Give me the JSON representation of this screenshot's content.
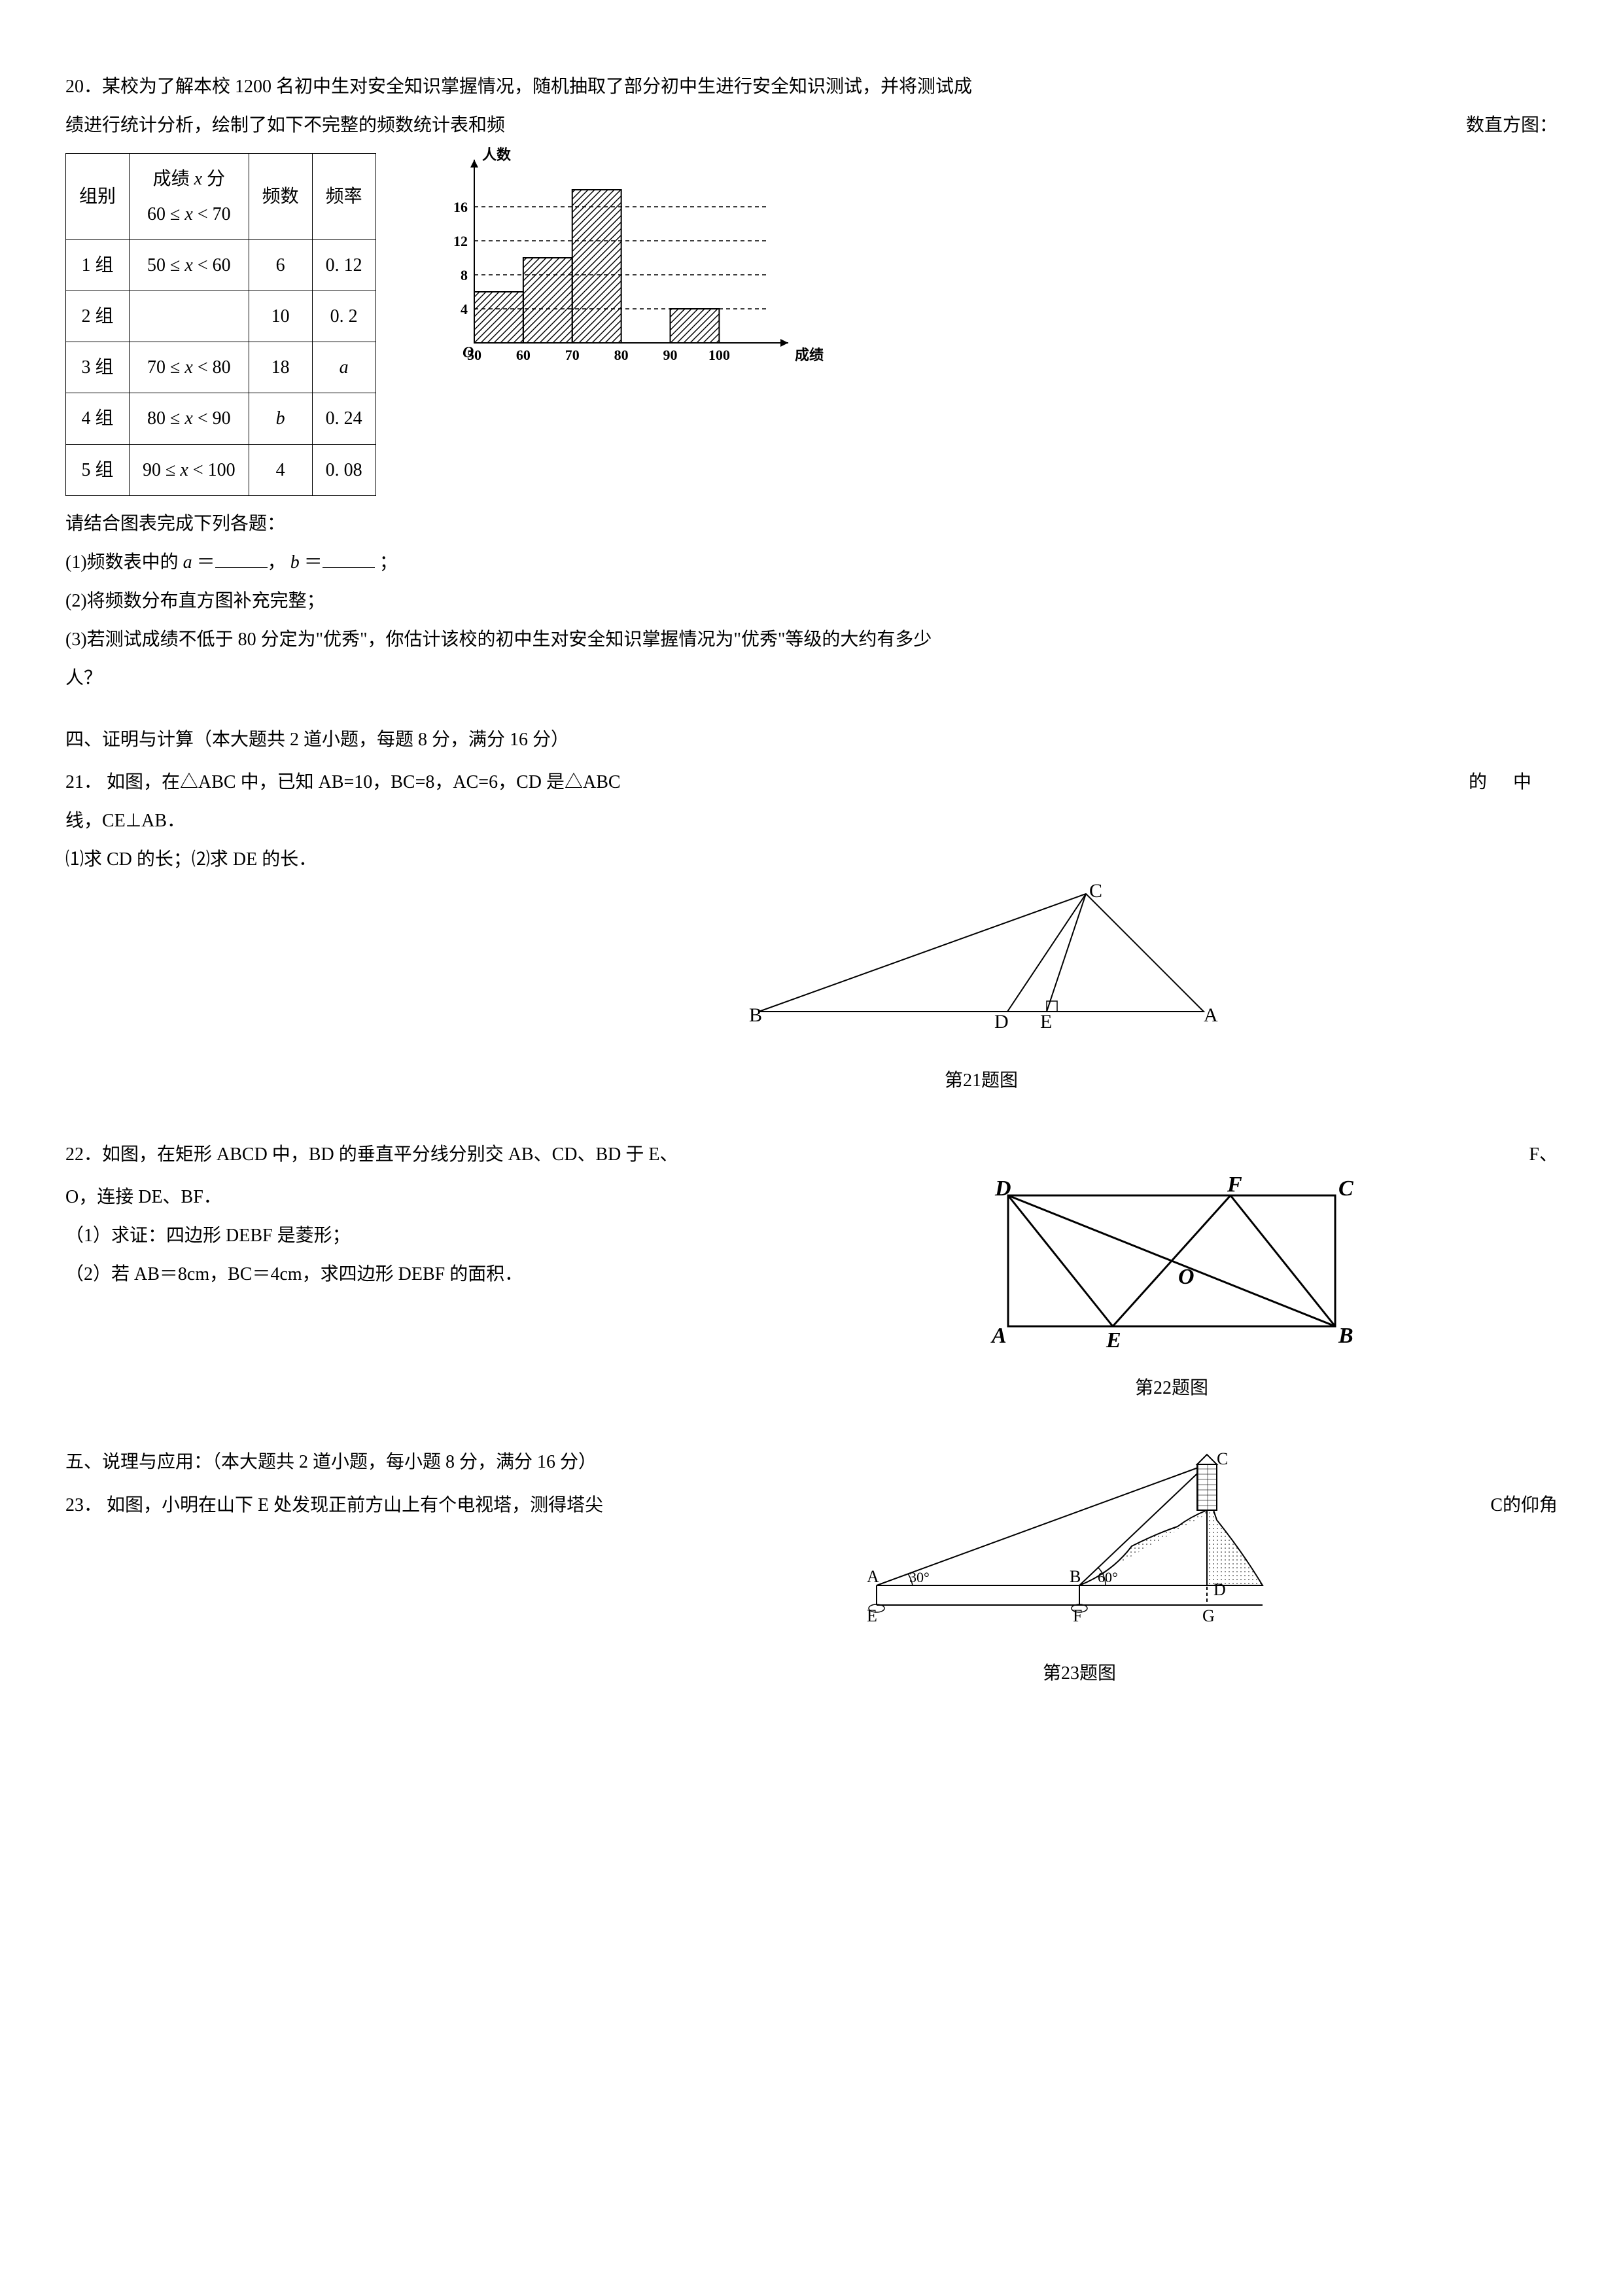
{
  "q20": {
    "intro_line1": "20．某校为了解本校 1200 名初中生对安全知识掌握情况，随机抽取了部分初中生进行安全知识测试，并将测试成",
    "intro_line2": "绩进行统计分析，绘制了如下不完整的频数统计表和频",
    "intro_right": "数直方图：",
    "table": {
      "headers": {
        "group": "组别",
        "score_top": "成绩",
        "score_suffix": " 分",
        "freq": "频数",
        "rate": "频率"
      },
      "header_range": "60 ≤ x < 70",
      "rows": [
        {
          "g": "1 组",
          "r": "50 ≤ x < 60",
          "f": "6",
          "p": "0. 12"
        },
        {
          "g": "2 组",
          "r": "",
          "f": "10",
          "p": "0. 2"
        },
        {
          "g": "3 组",
          "r": "70 ≤ x < 80",
          "f": "18",
          "p": "a"
        },
        {
          "g": "4 组",
          "r": "80 ≤ x < 90",
          "f": "b",
          "p": "0. 24"
        },
        {
          "g": "5 组",
          "r": "90 ≤ x < 100",
          "f": "4",
          "p": "0. 08"
        }
      ]
    },
    "chart": {
      "ylabel": "人数",
      "xlabel": "成绩",
      "yticks": [
        4,
        8,
        12,
        16
      ],
      "xticks": [
        50,
        60,
        70,
        80,
        90,
        100
      ],
      "bars": [
        {
          "x0": 50,
          "x1": 60,
          "y": 6
        },
        {
          "x0": 60,
          "x1": 70,
          "y": 10
        },
        {
          "x0": 70,
          "x1": 80,
          "y": 18
        },
        {
          "x0": 90,
          "x1": 100,
          "y": 4
        }
      ],
      "ymax": 20,
      "origin_label": "O"
    },
    "sub_intro": "请结合图表完成下列各题：",
    "p1a": "(1)频数表中的 ",
    "p1_a": "a",
    "p1_eq": " ＝",
    "p1_sep": "，",
    "p1_b": "b",
    "p1_end": " ；",
    "p2": "(2)将频数分布直方图补充完整；",
    "p3a": "(3)若测试成绩不低于 80 分定为\"优秀\"，你估计该校的初中生对安全知识掌握情况为\"优秀\"等级的大约有多少",
    "p3b": "人？"
  },
  "section4": "四、证明与计算（本大题共 2 道小题，每题 8 分，满分 16 分）",
  "q21": {
    "line1_left": "21． 如图，在△ABC 中，已知 AB=10，BC=8，AC=6，CD 是△ABC",
    "line1_r1": "的",
    "line1_r2": "中",
    "line2": "线，CE⊥AB．",
    "line3": "⑴求 CD 的长；⑵求 DE 的长．",
    "fig_label": "第21题图",
    "labels": {
      "A": "A",
      "B": "B",
      "C": "C",
      "D": "D",
      "E": "E"
    }
  },
  "q22": {
    "line1_left": "22．如图，在矩形 ABCD 中，BD 的垂直平分线分别交 AB、CD、BD 于 E、",
    "line1_right": "F、",
    "line2": "O，连接 DE、BF．",
    "p1": "（1）求证：四边形 DEBF 是菱形；",
    "p2": "（2）若 AB＝8cm，BC＝4cm，求四边形 DEBF 的面积．",
    "fig_label": "第22题图",
    "labels": {
      "A": "A",
      "B": "B",
      "C": "C",
      "D": "D",
      "E": "E",
      "F": "F",
      "O": "O"
    }
  },
  "section5": "五、说理与应用：（本大题共 2 道小题，每小题 8 分，满分 16 分）",
  "q23": {
    "line1_left": "23． 如图，小明在山下 E 处发现正前方山上有个电视塔，测得塔尖",
    "line1_right": "C的仰角",
    "fig_label": "第23题图",
    "labels": {
      "A": "A",
      "B": "B",
      "C": "C",
      "D": "D",
      "E": "E",
      "F": "F",
      "G": "G",
      "a30": "30°",
      "a60": "60°"
    }
  }
}
